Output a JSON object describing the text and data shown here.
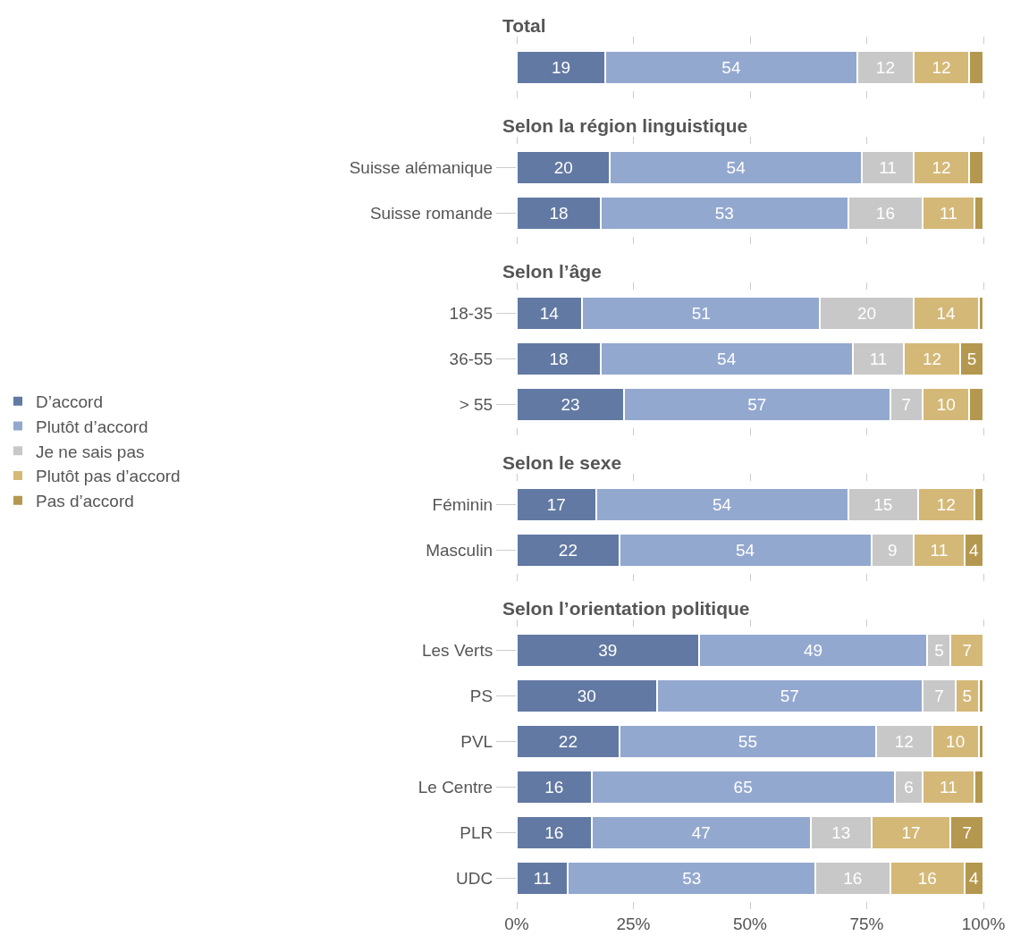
{
  "chart_data": [
    {
      "type": "bar",
      "title": "Total",
      "orientation": "horizontal",
      "stacked": true,
      "legend": "left",
      "tick_labels": "y",
      "grid": false,
      "categories": [
        null
      ],
      "xlim": [
        0,
        100
      ],
      "xticks": [
        {
          "value": 0,
          "label": null
        },
        {
          "value": 25,
          "label": null
        },
        {
          "value": 50,
          "label": null
        },
        {
          "value": 75,
          "label": null
        },
        {
          "value": 100,
          "label": null
        }
      ],
      "series": [
        {
          "name": "D’accord",
          "color": "#6279a3",
          "values": [
            19
          ],
          "value_labels": [
            "19"
          ]
        },
        {
          "name": "Plutôt d’accord",
          "color": "#93a8cf",
          "values": [
            54
          ],
          "value_labels": [
            "54"
          ]
        },
        {
          "name": "Je ne sais pas",
          "color": "#c8c8c8",
          "values": [
            12
          ],
          "value_labels": [
            "12"
          ]
        },
        {
          "name": "Plutôt pas d’accord",
          "color": "#d4b877",
          "values": [
            12
          ],
          "value_labels": [
            "12"
          ]
        },
        {
          "name": "Pas d’accord",
          "color": "#b5984f",
          "values": [
            3
          ],
          "value_labels": [
            null
          ]
        }
      ]
    },
    {
      "type": "bar",
      "title": "Selon la région linguistique",
      "orientation": "horizontal",
      "stacked": true,
      "tick_labels": "y",
      "grid": false,
      "categories": [
        "Suisse alémanique",
        "Suisse romande"
      ],
      "xlim": [
        0,
        100
      ],
      "xticks": [
        {
          "value": 0,
          "label": null
        },
        {
          "value": 25,
          "label": null
        },
        {
          "value": 50,
          "label": null
        },
        {
          "value": 75,
          "label": null
        },
        {
          "value": 100,
          "label": null
        }
      ],
      "series": [
        {
          "color": "#6279a3",
          "values": [
            20,
            18
          ],
          "value_labels": [
            "20",
            "18"
          ]
        },
        {
          "color": "#93a8cf",
          "values": [
            54,
            53
          ],
          "value_labels": [
            "54",
            "53"
          ]
        },
        {
          "color": "#c8c8c8",
          "values": [
            11,
            16
          ],
          "value_labels": [
            "11",
            "16"
          ]
        },
        {
          "color": "#d4b877",
          "values": [
            12,
            11
          ],
          "value_labels": [
            "12",
            "11"
          ]
        },
        {
          "color": "#b5984f",
          "values": [
            3,
            2
          ],
          "value_labels": [
            null,
            null
          ]
        }
      ]
    },
    {
      "type": "bar",
      "title": "Selon l’âge",
      "orientation": "horizontal",
      "stacked": true,
      "tick_labels": "y",
      "grid": false,
      "categories": [
        "18-35",
        "36-55",
        "> 55"
      ],
      "xlim": [
        0,
        100
      ],
      "xticks": [
        {
          "value": 0,
          "label": null
        },
        {
          "value": 25,
          "label": null
        },
        {
          "value": 50,
          "label": null
        },
        {
          "value": 75,
          "label": null
        },
        {
          "value": 100,
          "label": null
        }
      ],
      "series": [
        {
          "color": "#6279a3",
          "values": [
            14,
            18,
            23
          ],
          "value_labels": [
            "14",
            "18",
            "23"
          ]
        },
        {
          "color": "#93a8cf",
          "values": [
            51,
            54,
            57
          ],
          "value_labels": [
            "51",
            "54",
            "57"
          ]
        },
        {
          "color": "#c8c8c8",
          "values": [
            20,
            11,
            7
          ],
          "value_labels": [
            "20",
            "11",
            "7"
          ]
        },
        {
          "color": "#d4b877",
          "values": [
            14,
            12,
            10
          ],
          "value_labels": [
            "14",
            "12",
            "10"
          ]
        },
        {
          "color": "#b5984f",
          "values": [
            1,
            5,
            3
          ],
          "value_labels": [
            null,
            "5",
            null
          ]
        }
      ]
    },
    {
      "type": "bar",
      "title": "Selon le sexe",
      "orientation": "horizontal",
      "stacked": true,
      "tick_labels": "y",
      "grid": false,
      "categories": [
        "Féminin",
        "Masculin"
      ],
      "xlim": [
        0,
        100
      ],
      "xticks": [
        {
          "value": 0,
          "label": null
        },
        {
          "value": 25,
          "label": null
        },
        {
          "value": 50,
          "label": null
        },
        {
          "value": 75,
          "label": null
        },
        {
          "value": 100,
          "label": null
        }
      ],
      "series": [
        {
          "color": "#6279a3",
          "values": [
            17,
            22
          ],
          "value_labels": [
            "17",
            "22"
          ]
        },
        {
          "color": "#93a8cf",
          "values": [
            54,
            54
          ],
          "value_labels": [
            "54",
            "54"
          ]
        },
        {
          "color": "#c8c8c8",
          "values": [
            15,
            9
          ],
          "value_labels": [
            "15",
            "9"
          ]
        },
        {
          "color": "#d4b877",
          "values": [
            12,
            11
          ],
          "value_labels": [
            "12",
            "11"
          ]
        },
        {
          "color": "#b5984f",
          "values": [
            2,
            4
          ],
          "value_labels": [
            null,
            "4"
          ]
        }
      ]
    },
    {
      "type": "bar",
      "title": "Selon l’orientation politique",
      "orientation": "horizontal",
      "stacked": true,
      "grid": false,
      "categories": [
        "Les Verts",
        "PS",
        "PVL",
        "Le Centre",
        "PLR",
        "UDC"
      ],
      "xlim": [
        0,
        100
      ],
      "xticks": [
        {
          "value": 0,
          "label": "0%"
        },
        {
          "value": 25,
          "label": "25%"
        },
        {
          "value": 50,
          "label": "50%"
        },
        {
          "value": 75,
          "label": "75%"
        },
        {
          "value": 100,
          "label": "100%"
        }
      ],
      "series": [
        {
          "color": "#6279a3",
          "values": [
            39,
            30,
            22,
            16,
            16,
            11
          ],
          "value_labels": [
            "39",
            "30",
            "22",
            "16",
            "16",
            "11"
          ]
        },
        {
          "color": "#93a8cf",
          "values": [
            49,
            57,
            55,
            65,
            47,
            53
          ],
          "value_labels": [
            "49",
            "57",
            "55",
            "65",
            "47",
            "53"
          ]
        },
        {
          "color": "#c8c8c8",
          "values": [
            5,
            7,
            12,
            6,
            13,
            16
          ],
          "value_labels": [
            "5",
            "7",
            "12",
            "6",
            "13",
            "16"
          ]
        },
        {
          "color": "#d4b877",
          "values": [
            7,
            5,
            10,
            11,
            17,
            16
          ],
          "value_labels": [
            "7",
            "5",
            "10",
            "11",
            "17",
            "16"
          ]
        },
        {
          "color": "#b5984f",
          "values": [
            null,
            1,
            1,
            2,
            7,
            4
          ],
          "value_labels": [
            null,
            null,
            null,
            null,
            "7",
            "4"
          ]
        }
      ]
    }
  ]
}
